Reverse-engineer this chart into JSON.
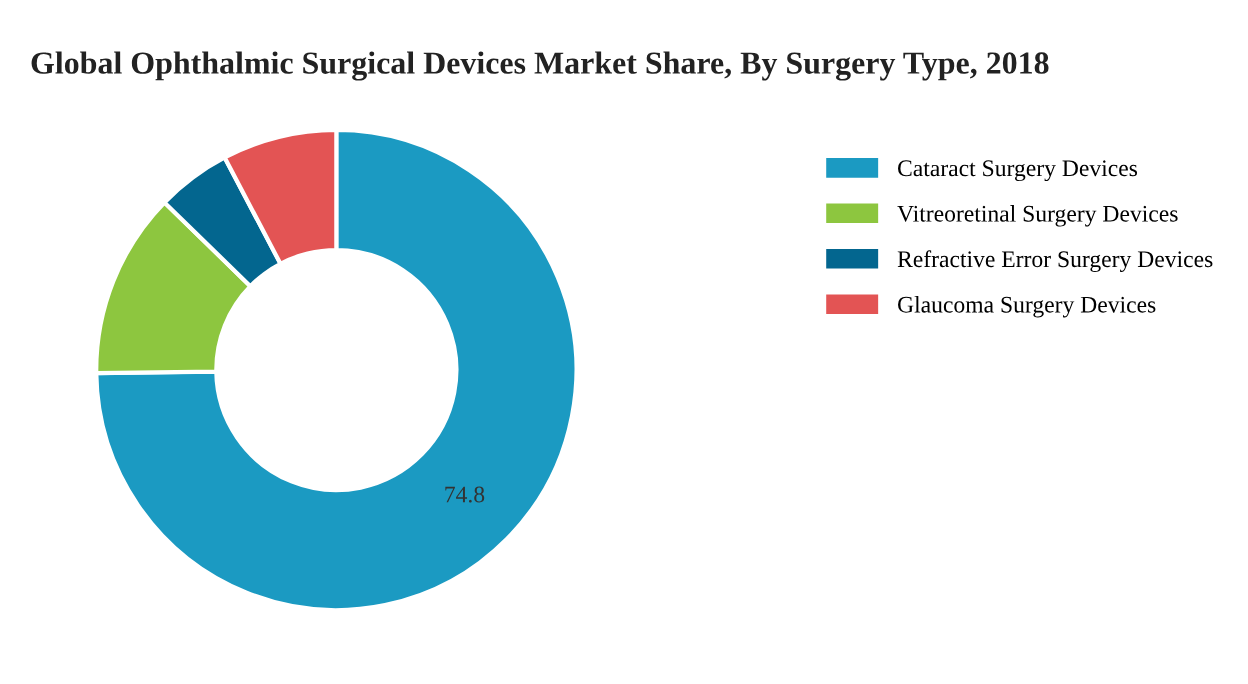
{
  "chart_data": {
    "type": "donut",
    "title": "Global Ophthalmic Surgical Devices Market Share, By Surgery Type, 2018",
    "categories": [
      "Cataract Surgery Devices",
      "Vitreoretinal Surgery Devices",
      "Refractive Error Surgery Devices",
      "Glaucoma Surgery Devices"
    ],
    "values": [
      74.8,
      12.5,
      5.0,
      7.7
    ],
    "colors": [
      "#1b9ac2",
      "#8dc63f",
      "#03668f",
      "#e35454"
    ],
    "value_labels": [
      "74.8",
      null,
      null,
      null
    ],
    "legend": "top right"
  }
}
